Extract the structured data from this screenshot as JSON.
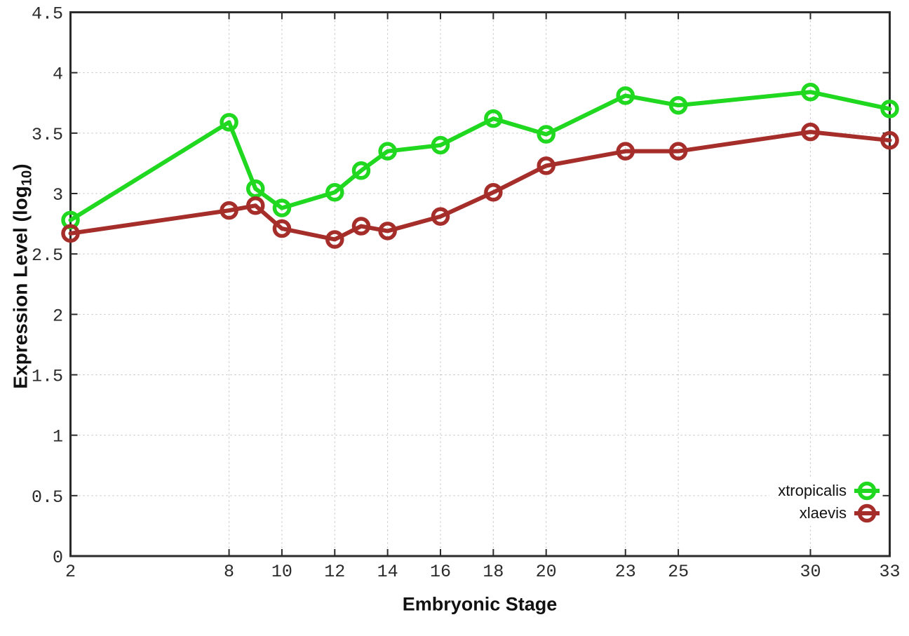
{
  "chart_data": {
    "type": "line",
    "title": "",
    "xlabel": "Embryonic Stage",
    "ylabel": {
      "pre": "Expression Level (log",
      "sub": "10",
      "post": ")"
    },
    "xlim": [
      2,
      33
    ],
    "ylim": [
      0,
      4.5
    ],
    "x_ticks": [
      2,
      8,
      10,
      12,
      14,
      16,
      18,
      20,
      23,
      25,
      30,
      33
    ],
    "x_tick_labels": [
      "2",
      "8",
      "10",
      "12",
      "14",
      "16",
      "18",
      "20",
      "23",
      "25",
      "30",
      "33"
    ],
    "y_ticks": [
      0,
      0.5,
      1,
      1.5,
      2,
      2.5,
      3,
      3.5,
      4,
      4.5
    ],
    "y_tick_labels": [
      "0",
      "0.5",
      "1",
      "1.5",
      "2",
      "2.5",
      "3",
      "3.5",
      "4",
      "4.5"
    ],
    "grid": "dotted",
    "legend_position": "inside-bottom-right",
    "x": [
      2,
      8,
      9,
      10,
      12,
      13,
      14,
      16,
      18,
      20,
      23,
      25,
      30,
      33
    ],
    "series": [
      {
        "name": "xtropicalis",
        "color": "#1fd81f",
        "values": [
          2.78,
          3.59,
          3.04,
          2.88,
          3.01,
          3.19,
          3.35,
          3.4,
          3.62,
          3.49,
          3.81,
          3.73,
          3.84,
          3.7
        ]
      },
      {
        "name": "xlaevis",
        "color": "#a62e2a",
        "values": [
          2.67,
          2.86,
          2.9,
          2.71,
          2.62,
          2.73,
          2.69,
          2.81,
          3.01,
          3.23,
          3.35,
          3.35,
          3.51,
          3.44
        ]
      }
    ],
    "colors": {
      "frame": "#2b2b2b",
      "grid": "#bdbdbd",
      "tick_text": "#2b2b2b",
      "label_text": "#111111",
      "background": "#ffffff"
    }
  }
}
